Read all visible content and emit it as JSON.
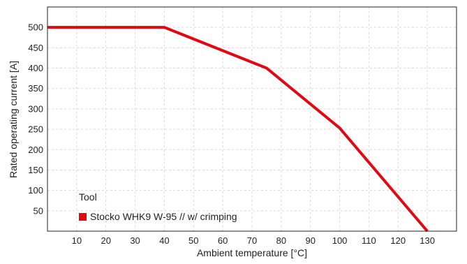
{
  "chart_data": {
    "type": "line",
    "xlabel": "Ambient temperature [°C]",
    "ylabel": "Rated operating current [A]",
    "xlim": [
      0,
      140
    ],
    "ylim": [
      0,
      550
    ],
    "x_ticks": [
      10,
      20,
      30,
      40,
      50,
      60,
      70,
      80,
      90,
      100,
      110,
      120,
      130
    ],
    "y_ticks": [
      50,
      100,
      150,
      200,
      250,
      300,
      350,
      400,
      450,
      500
    ],
    "grid": true,
    "legend": {
      "title": "Tool",
      "placement": "bottom-left"
    },
    "series": [
      {
        "name": "Stocko WHK9 W-95 // w/ crimping",
        "color": "#e30613",
        "x": [
          0,
          40,
          75,
          100,
          130
        ],
        "y": [
          500,
          500,
          400,
          253,
          0
        ]
      }
    ]
  }
}
